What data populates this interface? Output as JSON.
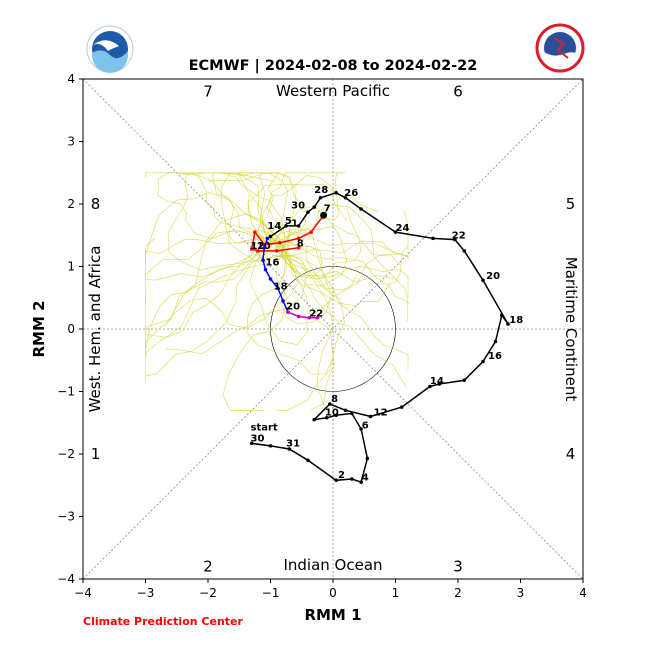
{
  "chart_data": {
    "type": "line",
    "title": "ECMWF | 2024-02-08 to 2024-02-22",
    "xlabel": "RMM 1",
    "ylabel": "RMM 2",
    "xlim": [
      -4,
      4
    ],
    "ylim": [
      -4,
      4
    ],
    "xticks": [
      "−4",
      "−3",
      "−2",
      "−1",
      "0",
      "1",
      "2",
      "3",
      "4"
    ],
    "yticks": [
      "−4",
      "−3",
      "−2",
      "−1",
      "0",
      "1",
      "2",
      "3",
      "4"
    ],
    "grid": false,
    "phase_numbers": [
      {
        "label": "7",
        "x": -2.0,
        "y": 3.8
      },
      {
        "label": "6",
        "x": 2.0,
        "y": 3.8
      },
      {
        "label": "8",
        "x": -3.8,
        "y": 2.0
      },
      {
        "label": "5",
        "x": 3.8,
        "y": 2.0
      },
      {
        "label": "1",
        "x": -3.8,
        "y": -2.0
      },
      {
        "label": "4",
        "x": 3.8,
        "y": -2.0
      },
      {
        "label": "2",
        "x": -2.0,
        "y": -3.8
      },
      {
        "label": "3",
        "x": 2.0,
        "y": -3.8
      }
    ],
    "region_labels": {
      "top": "Western Pacific",
      "bottom": "Indian Ocean",
      "left": "West. Hem. and Africa",
      "right": "Maritime Continent"
    },
    "footer": "Climate Prediction Center",
    "observed": {
      "color": "#000000",
      "points": [
        [
          -1.3,
          -1.83
        ],
        [
          -1.0,
          -1.87
        ],
        [
          -0.7,
          -1.92
        ],
        [
          -0.4,
          -2.1
        ],
        [
          0.05,
          -2.42
        ],
        [
          0.3,
          -2.4
        ],
        [
          0.45,
          -2.45
        ],
        [
          0.55,
          -2.07
        ],
        [
          0.45,
          -1.6
        ],
        [
          0.3,
          -1.35
        ],
        [
          0.05,
          -1.38
        ],
        [
          -0.1,
          -1.42
        ],
        [
          -0.3,
          -1.45
        ],
        [
          -0.05,
          -1.2
        ],
        [
          0.2,
          -1.3
        ],
        [
          0.6,
          -1.4
        ],
        [
          1.1,
          -1.25
        ],
        [
          1.55,
          -0.92
        ],
        [
          1.7,
          -0.88
        ],
        [
          2.1,
          -0.82
        ],
        [
          2.4,
          -0.52
        ],
        [
          2.6,
          -0.2
        ],
        [
          2.7,
          0.22
        ],
        [
          2.8,
          0.08
        ],
        [
          2.4,
          0.78
        ],
        [
          2.1,
          1.25
        ],
        [
          1.95,
          1.43
        ],
        [
          1.6,
          1.45
        ],
        [
          1.0,
          1.55
        ],
        [
          0.45,
          1.92
        ],
        [
          0.2,
          2.1
        ],
        [
          0.05,
          2.18
        ],
        [
          -0.2,
          2.1
        ],
        [
          -0.3,
          1.95
        ],
        [
          -0.4,
          1.87
        ],
        [
          -0.55,
          1.65
        ],
        [
          -0.75,
          1.65
        ],
        [
          -1.0,
          1.48
        ]
      ],
      "labels": [
        {
          "text": "start",
          "x": -1.32,
          "y": -1.62
        },
        {
          "text": "30",
          "x": -1.32,
          "y": -1.8
        },
        {
          "text": "31",
          "x": -0.75,
          "y": -1.88
        },
        {
          "text": "2",
          "x": 0.08,
          "y": -2.38
        },
        {
          "text": "4",
          "x": 0.46,
          "y": -2.42
        },
        {
          "text": "6",
          "x": 0.46,
          "y": -1.59
        },
        {
          "text": "8",
          "x": -0.03,
          "y": -1.17
        },
        {
          "text": "10",
          "x": -0.13,
          "y": -1.38
        },
        {
          "text": "12",
          "x": 0.65,
          "y": -1.38
        },
        {
          "text": "14",
          "x": 1.55,
          "y": -0.88
        },
        {
          "text": "16",
          "x": 2.48,
          "y": -0.48
        },
        {
          "text": "18",
          "x": 2.82,
          "y": 0.1
        },
        {
          "text": "20",
          "x": 2.45,
          "y": 0.8
        },
        {
          "text": "22",
          "x": 1.9,
          "y": 1.45
        },
        {
          "text": "24",
          "x": 1.0,
          "y": 1.57
        },
        {
          "text": "26",
          "x": 0.18,
          "y": 2.13
        },
        {
          "text": "28",
          "x": -0.3,
          "y": 2.18
        },
        {
          "text": "30",
          "x": -0.67,
          "y": 1.93
        },
        {
          "text": "5",
          "x": -0.77,
          "y": 1.68
        },
        {
          "text": "1",
          "x": -0.67,
          "y": 1.64
        },
        {
          "text": "14",
          "x": -1.05,
          "y": 1.6
        }
      ]
    },
    "forecast_early": {
      "color": "#ff0000",
      "points": [
        [
          -0.15,
          1.82
        ],
        [
          -0.35,
          1.55
        ],
        [
          -0.55,
          1.45
        ],
        [
          -0.85,
          1.38
        ],
        [
          -1.1,
          1.35
        ],
        [
          -1.25,
          1.55
        ],
        [
          -1.3,
          1.28
        ],
        [
          -1.2,
          1.25
        ],
        [
          -0.9,
          1.25
        ],
        [
          -0.55,
          1.3
        ]
      ],
      "labels": [
        {
          "text": "7",
          "x": -0.15,
          "y": 1.88
        },
        {
          "text": "8",
          "x": -0.58,
          "y": 1.32
        },
        {
          "text": "10",
          "x": -1.22,
          "y": 1.28
        },
        {
          "text": "12",
          "x": -1.32,
          "y": 1.28
        }
      ]
    },
    "forecast_mid": {
      "color": "#0000ff",
      "points": [
        [
          -1.05,
          1.45
        ],
        [
          -1.1,
          1.3
        ],
        [
          -1.12,
          1.1
        ],
        [
          -1.08,
          0.95
        ],
        [
          -1.0,
          0.8
        ],
        [
          -0.88,
          0.65
        ],
        [
          -0.8,
          0.45
        ],
        [
          -0.72,
          0.27
        ]
      ],
      "labels": [
        {
          "text": "16",
          "x": -1.08,
          "y": 1.02
        },
        {
          "text": "18",
          "x": -0.95,
          "y": 0.63
        }
      ]
    },
    "forecast_late": {
      "color": "#cc00cc",
      "points": [
        [
          -0.72,
          0.27
        ],
        [
          -0.55,
          0.2
        ],
        [
          -0.38,
          0.18
        ],
        [
          -0.25,
          0.18
        ]
      ],
      "labels": [
        {
          "text": "20",
          "x": -0.75,
          "y": 0.31
        },
        {
          "text": "22",
          "x": -0.38,
          "y": 0.2
        }
      ]
    }
  }
}
